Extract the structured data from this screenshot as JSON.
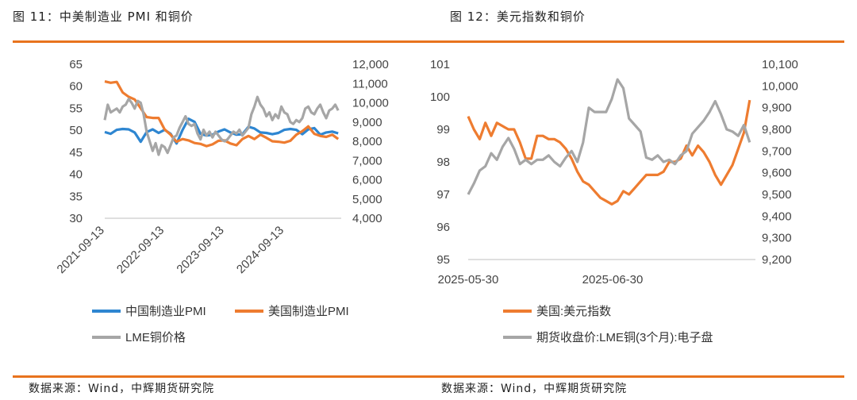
{
  "colors": {
    "accent": "#E8731E",
    "blue": "#2E86D1",
    "orange": "#EE7C30",
    "gray": "#A6A6A6"
  },
  "left": {
    "title": "图 11：中美制造业 PMI 和铜价",
    "source": "数据来源：Wind，中辉期货研究院"
  },
  "right": {
    "title": "图 12：美元指数和铜价",
    "source": "数据来源：Wind，中辉期货研究院"
  },
  "chart_data": [
    {
      "type": "line",
      "ylim": [
        30,
        65
      ],
      "y2lim": [
        4000,
        12000
      ],
      "yticks": [
        "30",
        "35",
        "40",
        "45",
        "50",
        "55",
        "60",
        "65"
      ],
      "y2ticks": [
        "4,000",
        "5,000",
        "6,000",
        "7,000",
        "8,000",
        "9,000",
        "10,000",
        "11,000",
        "12,000"
      ],
      "xticks": [
        "2021-09-13",
        "2022-09-13",
        "2023-09-13",
        "2024-09-13"
      ],
      "xlim": [
        2021.7,
        2025.65
      ],
      "legend": [
        "中国制造业PMI",
        "美国制造业PMI",
        "LME铜价格"
      ],
      "series": [
        {
          "name": "中国制造业PMI",
          "axis": "left",
          "x": [
            2021.7,
            2021.8,
            2021.9,
            2022.0,
            2022.1,
            2022.2,
            2022.3,
            2022.4,
            2022.5,
            2022.6,
            2022.7,
            2022.8,
            2022.9,
            2023.0,
            2023.1,
            2023.2,
            2023.3,
            2023.4,
            2023.5,
            2023.6,
            2023.7,
            2023.8,
            2023.9,
            2024.0,
            2024.1,
            2024.2,
            2024.3,
            2024.4,
            2024.5,
            2024.6,
            2024.7,
            2024.8,
            2024.9,
            2025.0,
            2025.1,
            2025.2,
            2025.3,
            2025.4,
            2025.5,
            2025.6
          ],
          "values": [
            49.6,
            49.2,
            50.1,
            50.3,
            50.2,
            49.5,
            47.4,
            49.6,
            50.2,
            49.4,
            50.1,
            49.2,
            47.0,
            50.1,
            52.6,
            51.9,
            49.2,
            48.8,
            49.0,
            49.7,
            50.2,
            49.5,
            49.0,
            49.1,
            50.8,
            50.4,
            49.5,
            49.4,
            49.1,
            49.4,
            50.1,
            50.3,
            50.1,
            49.1,
            50.2,
            50.5,
            49.0,
            49.5,
            49.7,
            49.3
          ]
        },
        {
          "name": "美国制造业PMI",
          "axis": "left",
          "x": [
            2021.7,
            2021.8,
            2021.9,
            2022.0,
            2022.1,
            2022.2,
            2022.3,
            2022.4,
            2022.5,
            2022.6,
            2022.7,
            2022.8,
            2022.9,
            2023.0,
            2023.1,
            2023.2,
            2023.3,
            2023.4,
            2023.5,
            2023.6,
            2023.7,
            2023.8,
            2023.9,
            2024.0,
            2024.1,
            2024.2,
            2024.3,
            2024.4,
            2024.5,
            2024.6,
            2024.7,
            2024.8,
            2024.9,
            2025.0,
            2025.1,
            2025.2,
            2025.3,
            2025.4,
            2025.5,
            2025.6
          ],
          "values": [
            61.1,
            60.8,
            61.0,
            58.6,
            57.6,
            57.0,
            55.0,
            53.0,
            52.8,
            52.8,
            50.2,
            49.0,
            47.4,
            48.0,
            47.7,
            47.1,
            46.9,
            46.4,
            46.8,
            47.6,
            47.7,
            47.0,
            46.6,
            48.0,
            48.7,
            48.0,
            49.0,
            48.3,
            47.5,
            47.4,
            47.2,
            47.6,
            49.0,
            49.8,
            50.9,
            49.2,
            48.7,
            48.5,
            49.0,
            48.0
          ]
        },
        {
          "name": "LME铜价格",
          "axis": "right",
          "x": [
            2021.7,
            2021.75,
            2021.8,
            2021.85,
            2021.9,
            2021.95,
            2022.0,
            2022.05,
            2022.1,
            2022.15,
            2022.2,
            2022.25,
            2022.3,
            2022.35,
            2022.4,
            2022.45,
            2022.5,
            2022.55,
            2022.6,
            2022.65,
            2022.7,
            2022.75,
            2022.8,
            2022.85,
            2022.9,
            2022.95,
            2023.0,
            2023.05,
            2023.1,
            2023.15,
            2023.2,
            2023.25,
            2023.3,
            2023.35,
            2023.4,
            2023.45,
            2023.5,
            2023.55,
            2023.6,
            2023.65,
            2023.7,
            2023.75,
            2023.8,
            2023.85,
            2023.9,
            2023.95,
            2024.0,
            2024.05,
            2024.1,
            2024.15,
            2024.2,
            2024.25,
            2024.3,
            2024.35,
            2024.4,
            2024.45,
            2024.5,
            2024.55,
            2024.6,
            2024.65,
            2024.7,
            2024.75,
            2024.8,
            2024.85,
            2024.9,
            2024.95,
            2025.0,
            2025.05,
            2025.1,
            2025.15,
            2025.2,
            2025.25,
            2025.3,
            2025.35,
            2025.4,
            2025.45,
            2025.5,
            2025.55,
            2025.6
          ],
          "values": [
            9100,
            9900,
            9500,
            9600,
            9700,
            9500,
            9800,
            9900,
            10200,
            10000,
            9700,
            10100,
            10000,
            9400,
            8500,
            8000,
            7500,
            7900,
            7300,
            7800,
            7700,
            7400,
            7800,
            8200,
            8300,
            8700,
            9000,
            9300,
            8900,
            8800,
            8900,
            8400,
            8100,
            8600,
            8300,
            8500,
            8200,
            8500,
            8300,
            8100,
            8000,
            8100,
            8300,
            8500,
            8400,
            8600,
            8300,
            8500,
            8700,
            9400,
            9800,
            10300,
            9900,
            9700,
            9300,
            9500,
            9100,
            9400,
            9200,
            9800,
            9500,
            9400,
            9000,
            8900,
            9100,
            9000,
            9200,
            9700,
            9800,
            9500,
            9400,
            9700,
            9900,
            9500,
            9200,
            9600,
            9700,
            9900,
            9600
          ]
        }
      ]
    },
    {
      "type": "line",
      "ylim": [
        95,
        101
      ],
      "y2lim": [
        9200,
        10100
      ],
      "yticks": [
        "95",
        "96",
        "97",
        "98",
        "99",
        "100",
        "101"
      ],
      "y2ticks": [
        "9,200",
        "9,300",
        "9,400",
        "9,500",
        "9,600",
        "9,700",
        "9,800",
        "9,900",
        "10,000",
        "10,100"
      ],
      "xticks": [
        "2025-05-30",
        "2025-06-30"
      ],
      "xlim": [
        0,
        50
      ],
      "legend": [
        "美国:美元指数",
        "期货收盘价:LME铜(3个月):电子盘"
      ],
      "series": [
        {
          "name": "美国:美元指数",
          "axis": "left",
          "x": [
            0,
            1,
            2,
            3,
            4,
            5,
            6,
            7,
            8,
            9,
            10,
            11,
            12,
            13,
            14,
            15,
            16,
            17,
            18,
            19,
            20,
            21,
            22,
            23,
            24,
            25,
            26,
            27,
            28,
            29,
            30,
            31,
            32,
            33,
            34,
            35,
            36,
            37,
            38,
            39,
            40,
            41,
            42,
            43,
            44,
            45,
            46,
            47,
            48,
            49
          ],
          "values": [
            99.4,
            99.0,
            98.7,
            99.2,
            98.8,
            99.2,
            99.1,
            99.0,
            99.0,
            98.6,
            98.1,
            98.1,
            98.8,
            98.8,
            98.7,
            98.7,
            98.6,
            98.4,
            98.1,
            97.7,
            97.4,
            97.3,
            97.1,
            96.9,
            96.8,
            96.7,
            96.8,
            97.1,
            97.0,
            97.2,
            97.4,
            97.6,
            97.6,
            97.6,
            97.7,
            98.0,
            98.0,
            98.1,
            98.5,
            98.2,
            98.5,
            98.3,
            98.0,
            97.6,
            97.3,
            97.6,
            97.9,
            98.4,
            98.9,
            99.9
          ]
        },
        {
          "name": "期货收盘价:LME铜(3个月):电子盘",
          "axis": "right",
          "x": [
            0,
            1,
            2,
            3,
            4,
            5,
            6,
            7,
            8,
            9,
            10,
            11,
            12,
            13,
            14,
            15,
            16,
            17,
            18,
            19,
            20,
            21,
            22,
            23,
            24,
            25,
            26,
            27,
            28,
            29,
            30,
            31,
            32,
            33,
            34,
            35,
            36,
            37,
            38,
            39,
            40,
            41,
            42,
            43,
            44,
            45,
            46,
            47,
            48,
            49
          ],
          "values": [
            9500,
            9550,
            9610,
            9630,
            9690,
            9660,
            9720,
            9760,
            9710,
            9640,
            9660,
            9640,
            9660,
            9660,
            9680,
            9650,
            9630,
            9670,
            9700,
            9650,
            9740,
            9900,
            9880,
            9880,
            9880,
            9940,
            10030,
            9990,
            9850,
            9820,
            9790,
            9670,
            9660,
            9680,
            9650,
            9660,
            9640,
            9680,
            9700,
            9780,
            9810,
            9840,
            9880,
            9930,
            9870,
            9800,
            9790,
            9770,
            9820,
            9740
          ]
        }
      ]
    }
  ]
}
